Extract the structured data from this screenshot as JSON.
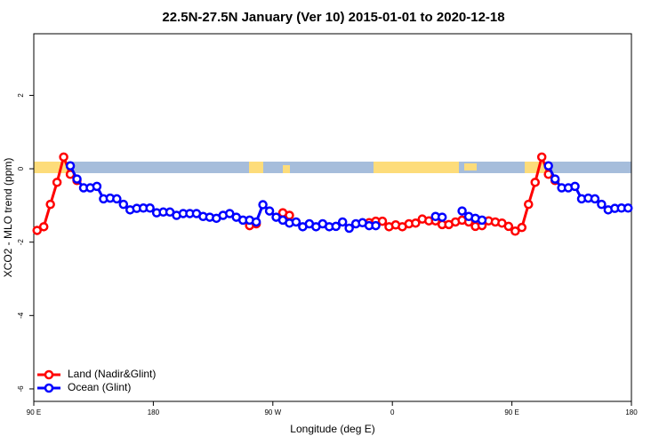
{
  "chart_data": {
    "type": "line",
    "title": "22.5N-27.5N January (Ver 10)   2015-01-01 to 2020-12-18",
    "x_label": "Longitude (deg E)",
    "y_label": "XCO2 - MLO trend (ppm)",
    "x": [
      92.5,
      97.5,
      102.5,
      107.5,
      112.5,
      117.5,
      122.5,
      127.5,
      132.5,
      137.5,
      142.5,
      147.5,
      152.5,
      157.5,
      162.5,
      167.5,
      172.5,
      177.5,
      182.5,
      187.5,
      192.5,
      197.5,
      202.5,
      207.5,
      212.5,
      217.5,
      222.5,
      227.5,
      232.5,
      237.5,
      242.5,
      247.5,
      252.5,
      257.5,
      262.5,
      267.5,
      272.5,
      277.5,
      282.5,
      287.5,
      292.5,
      297.5,
      302.5,
      307.5,
      312.5,
      317.5,
      322.5,
      327.5,
      332.5,
      337.5,
      342.5,
      347.5,
      352.5,
      357.5,
      362.5,
      367.5,
      372.5,
      377.5,
      382.5,
      387.5,
      392.5,
      397.5,
      402.5,
      407.5,
      412.5,
      417.5,
      422.5,
      427.5,
      432.5,
      437.5,
      442.5,
      447.5,
      452.5,
      457.5,
      462.5,
      467.5,
      472.5,
      477.5,
      482.5,
      487.5,
      492.5,
      497.5,
      502.5,
      507.5,
      512.5,
      517.5,
      522.5,
      527.5,
      532.5,
      537.5
    ],
    "series": [
      {
        "name": "Land (Nadir&Glint)",
        "color": "#ff0000",
        "values": [
          -1.68,
          -1.58,
          -0.97,
          -0.37,
          0.32,
          -0.15,
          -0.32,
          null,
          null,
          null,
          null,
          null,
          null,
          null,
          null,
          null,
          null,
          null,
          null,
          null,
          null,
          null,
          null,
          null,
          null,
          null,
          null,
          null,
          null,
          null,
          null,
          null,
          -1.55,
          -1.5,
          null,
          null,
          null,
          -1.2,
          -1.27,
          null,
          null,
          null,
          null,
          null,
          null,
          null,
          null,
          null,
          null,
          null,
          -1.47,
          -1.43,
          -1.43,
          -1.58,
          -1.53,
          -1.58,
          -1.5,
          -1.48,
          -1.37,
          -1.42,
          -1.42,
          -1.52,
          -1.52,
          -1.45,
          -1.4,
          -1.45,
          -1.57,
          -1.55,
          -1.42,
          -1.45,
          -1.48,
          -1.57,
          -1.7,
          -1.6,
          -0.97,
          -0.37,
          0.32,
          -0.15,
          -0.32,
          null,
          null,
          null,
          null,
          null,
          null,
          null,
          null,
          null,
          null,
          null
        ]
      },
      {
        "name": "Ocean (Glint)",
        "color": "#0000ff",
        "values": [
          null,
          null,
          null,
          null,
          null,
          0.08,
          -0.28,
          -0.52,
          -0.52,
          -0.48,
          -0.82,
          -0.8,
          -0.82,
          -0.97,
          -1.12,
          -1.08,
          -1.07,
          -1.07,
          -1.2,
          -1.18,
          -1.18,
          -1.27,
          -1.22,
          -1.22,
          -1.22,
          -1.3,
          -1.32,
          -1.35,
          -1.27,
          -1.22,
          -1.32,
          -1.4,
          -1.4,
          -1.45,
          -0.98,
          -1.15,
          -1.32,
          -1.4,
          -1.48,
          -1.45,
          -1.58,
          -1.5,
          -1.58,
          -1.5,
          -1.58,
          -1.57,
          -1.45,
          -1.62,
          -1.5,
          -1.47,
          -1.55,
          -1.55,
          null,
          null,
          null,
          null,
          null,
          null,
          null,
          null,
          -1.3,
          -1.32,
          null,
          null,
          -1.15,
          -1.3,
          -1.35,
          -1.4,
          null,
          null,
          null,
          null,
          null,
          null,
          null,
          null,
          null,
          0.08,
          -0.28,
          -0.52,
          -0.52,
          -0.48,
          -0.82,
          -0.8,
          -0.82,
          -0.97,
          -1.12,
          -1.08,
          -1.07,
          -1.07
        ]
      }
    ],
    "xlim": [
      90,
      540
    ],
    "xticks": [
      {
        "value": 90,
        "label": "90 E"
      },
      180,
      {
        "value": 270,
        "label": "90 W"
      },
      {
        "value": 360,
        "label": "0"
      },
      {
        "value": 450,
        "label": "90 E"
      },
      {
        "value": 540,
        "label": "180"
      }
    ],
    "ylim": [
      -6.34,
      3.68
    ],
    "yticks": [
      -6,
      -4,
      -2,
      0,
      2
    ],
    "legend": "bottom-left"
  }
}
